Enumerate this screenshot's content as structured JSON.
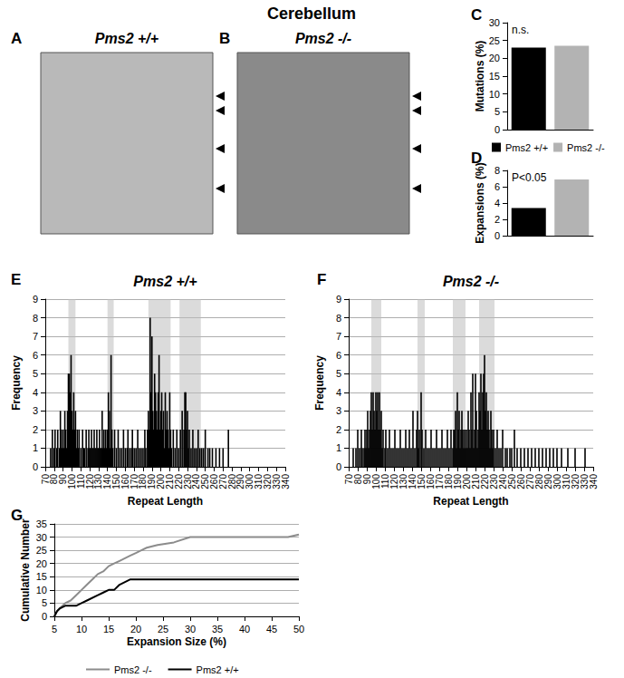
{
  "title": "Cerebellum",
  "gels": [
    {
      "label": "A",
      "title": "Pms2 +/+"
    },
    {
      "label": "B",
      "title": "Pms2 -/-"
    }
  ],
  "chart_data": [
    {
      "label": "C",
      "type": "bar",
      "categories": [
        "Pms2 +/+",
        "Pms2 -/-"
      ],
      "values": [
        23,
        23.5
      ],
      "colors": [
        "#000000",
        "#b3b3b3"
      ],
      "ylabel": "Mutations (%)",
      "ylim": [
        0,
        30
      ],
      "yticks": [
        0,
        5,
        10,
        15,
        20,
        25,
        30
      ],
      "annotation": "n.s.",
      "tick_labels": "y",
      "grid": false
    },
    {
      "label": "D",
      "type": "bar",
      "categories": [
        "Pms2 +/+",
        "Pms2 -/-"
      ],
      "values": [
        3.4,
        6.9
      ],
      "colors": [
        "#000000",
        "#b3b3b3"
      ],
      "ylabel": "Expansions (%)",
      "ylim": [
        0,
        8
      ],
      "yticks": [
        0,
        2,
        4,
        6,
        8
      ],
      "annotation": "P<0.05",
      "tick_labels": "y",
      "grid": false,
      "legend": "top"
    },
    {
      "label": "E",
      "type": "bar",
      "title": "Pms2 +/+",
      "xlabel": "Repeat Length",
      "ylabel": "Frequency",
      "color": "#000000",
      "x": [
        76,
        78,
        80,
        81,
        83,
        84,
        86,
        87,
        88,
        89,
        90,
        91,
        92,
        93,
        94,
        95,
        96,
        97,
        98,
        99,
        100,
        101,
        102,
        103,
        104,
        105,
        106,
        107,
        108,
        110,
        112,
        113,
        114,
        116,
        118,
        119,
        120,
        121,
        122,
        123,
        124,
        125,
        126,
        127,
        128,
        129,
        130,
        131,
        132,
        133,
        134,
        135,
        136,
        137,
        138,
        139,
        140,
        141,
        142,
        143,
        144,
        145,
        146,
        148,
        150,
        152,
        154,
        156,
        158,
        160,
        162,
        163,
        165,
        167,
        168,
        170,
        172,
        174,
        176,
        178,
        180,
        182,
        183,
        185,
        186,
        187,
        188,
        189,
        190,
        191,
        192,
        193,
        194,
        195,
        196,
        197,
        198,
        199,
        200,
        201,
        202,
        203,
        204,
        205,
        206,
        207,
        208,
        209,
        210,
        211,
        212,
        214,
        216,
        218,
        220,
        222,
        224,
        226,
        227,
        228,
        229,
        230,
        231,
        232,
        234,
        236,
        238,
        240,
        242,
        244,
        246,
        248,
        250,
        253,
        255,
        258,
        262,
        266,
        270,
        276
      ],
      "values": [
        1,
        2,
        1,
        2,
        1,
        2,
        1,
        3,
        2,
        1,
        2,
        1,
        3,
        2,
        1,
        3,
        5,
        5,
        4,
        6,
        3,
        2,
        4,
        2,
        3,
        1,
        2,
        1,
        2,
        1,
        2,
        1,
        1,
        2,
        1,
        2,
        1,
        1,
        2,
        1,
        1,
        2,
        1,
        1,
        2,
        1,
        1,
        2,
        1,
        1,
        3,
        1,
        2,
        1,
        2,
        1,
        2,
        4,
        3,
        1,
        6,
        2,
        1,
        2,
        1,
        2,
        1,
        1,
        2,
        1,
        1,
        2,
        1,
        1,
        2,
        1,
        1,
        2,
        1,
        1,
        1,
        2,
        1,
        2,
        3,
        2,
        8,
        4,
        7,
        3,
        2,
        5,
        4,
        3,
        2,
        4,
        6,
        2,
        3,
        4,
        2,
        3,
        1,
        4,
        2,
        3,
        2,
        1,
        4,
        2,
        1,
        2,
        1,
        2,
        1,
        2,
        3,
        2,
        4,
        4,
        2,
        3,
        1,
        2,
        1,
        2,
        1,
        1,
        2,
        1,
        1,
        1,
        2,
        1,
        1,
        1,
        1,
        1,
        1,
        2
      ],
      "shaded_ranges": [
        [
          96,
          104
        ],
        [
          140,
          147
        ],
        [
          186,
          211
        ],
        [
          221,
          245
        ]
      ],
      "xlim": [
        70,
        340
      ],
      "xticks": [
        70,
        80,
        90,
        100,
        110,
        120,
        130,
        140,
        150,
        160,
        170,
        180,
        190,
        200,
        210,
        220,
        230,
        240,
        250,
        260,
        270,
        280,
        290,
        300,
        310,
        320,
        330,
        340
      ],
      "ylim": [
        0,
        9
      ],
      "yticks": [
        0,
        1,
        2,
        3,
        4,
        5,
        6,
        7,
        8,
        9
      ],
      "grid": true
    },
    {
      "label": "F",
      "type": "bar",
      "title": "Pms2 -/-",
      "xlabel": "Repeat Length",
      "ylabel": "Frequency",
      "color": "#000000",
      "x": [
        75,
        78,
        80,
        82,
        84,
        85,
        87,
        88,
        89,
        90,
        91,
        92,
        93,
        94,
        95,
        96,
        97,
        98,
        99,
        100,
        101,
        102,
        103,
        104,
        105,
        106,
        107,
        108,
        110,
        111,
        113,
        115,
        117,
        119,
        121,
        123,
        125,
        127,
        129,
        131,
        133,
        135,
        137,
        139,
        141,
        143,
        145,
        146,
        147,
        148,
        150,
        151,
        153,
        155,
        157,
        159,
        161,
        163,
        165,
        167,
        169,
        171,
        173,
        175,
        177,
        179,
        181,
        183,
        185,
        186,
        187,
        188,
        189,
        190,
        191,
        192,
        193,
        194,
        195,
        196,
        197,
        198,
        199,
        200,
        201,
        202,
        203,
        204,
        205,
        206,
        207,
        208,
        209,
        210,
        211,
        212,
        213,
        214,
        215,
        216,
        217,
        218,
        219,
        220,
        221,
        222,
        223,
        224,
        225,
        226,
        227,
        228,
        229,
        230,
        232,
        234,
        236,
        238,
        240,
        243,
        245,
        248,
        250,
        253,
        256,
        260,
        264,
        268,
        272,
        276,
        280,
        284,
        288,
        292,
        296,
        300,
        305,
        312,
        320,
        331
      ],
      "values": [
        1,
        1,
        2,
        1,
        2,
        1,
        1,
        2,
        1,
        2,
        3,
        1,
        2,
        3,
        4,
        2,
        4,
        3,
        2,
        4,
        3,
        4,
        2,
        4,
        2,
        3,
        1,
        2,
        1,
        2,
        1,
        2,
        1,
        1,
        2,
        1,
        1,
        2,
        1,
        1,
        2,
        1,
        2,
        1,
        3,
        1,
        2,
        3,
        1,
        2,
        4,
        2,
        1,
        2,
        1,
        1,
        2,
        1,
        1,
        2,
        1,
        1,
        2,
        1,
        1,
        2,
        1,
        2,
        1,
        2,
        2,
        3,
        1,
        4,
        2,
        3,
        1,
        2,
        3,
        2,
        1,
        2,
        1,
        2,
        1,
        3,
        2,
        1,
        4,
        2,
        5,
        1,
        2,
        5,
        3,
        1,
        2,
        4,
        3,
        5,
        2,
        4,
        5,
        6,
        3,
        4,
        2,
        3,
        2,
        1,
        3,
        2,
        1,
        2,
        1,
        2,
        1,
        1,
        2,
        1,
        1,
        1,
        1,
        2,
        1,
        1,
        1,
        1,
        1,
        1,
        1,
        1,
        1,
        1,
        1,
        1,
        1,
        1,
        1,
        1
      ],
      "shaded_ranges": [
        [
          95,
          106
        ],
        [
          146,
          154
        ],
        [
          185,
          199
        ],
        [
          214,
          231
        ]
      ],
      "xlim": [
        70,
        340
      ],
      "xticks": [
        70,
        80,
        90,
        100,
        110,
        120,
        130,
        140,
        150,
        160,
        170,
        180,
        190,
        200,
        210,
        220,
        230,
        240,
        250,
        260,
        270,
        280,
        290,
        300,
        310,
        320,
        330,
        340
      ],
      "ylim": [
        0,
        9
      ],
      "yticks": [
        0,
        1,
        2,
        3,
        4,
        5,
        6,
        7,
        8,
        9
      ],
      "grid": true
    },
    {
      "label": "G",
      "type": "line",
      "xlabel": "Expansion Size (%)",
      "ylabel": "Cumulative Number",
      "series": [
        {
          "name": "Pms2 -/-",
          "color": "#8c8c8c",
          "marker": "none",
          "x": [
            5,
            5.5,
            6,
            7,
            8,
            9,
            10,
            11,
            12,
            13,
            14,
            15,
            16,
            17,
            18,
            19,
            20,
            21,
            22,
            24,
            27,
            30,
            48,
            50
          ],
          "values": [
            0,
            2,
            3,
            5,
            6,
            8,
            10,
            12,
            14,
            16,
            17,
            19,
            20,
            21,
            22,
            23,
            24,
            25,
            26,
            27,
            28,
            30,
            30,
            31
          ]
        },
        {
          "name": "Pms2 +/+",
          "color": "#000000",
          "marker": "none",
          "x": [
            5,
            5.5,
            6,
            7,
            9,
            10,
            11,
            13,
            14,
            15,
            16,
            17,
            18,
            19,
            50
          ],
          "values": [
            0,
            2,
            3,
            4,
            4,
            5,
            6,
            8,
            9,
            10,
            10,
            12,
            13,
            14,
            14
          ]
        }
      ],
      "xlim": [
        5,
        50
      ],
      "xticks": [
        5,
        10,
        15,
        20,
        25,
        30,
        35,
        40,
        45,
        50
      ],
      "ylim": [
        0,
        35
      ],
      "yticks": [
        0,
        5,
        10,
        15,
        20,
        25,
        30,
        35
      ],
      "grid": true,
      "legend": "bottom"
    }
  ]
}
